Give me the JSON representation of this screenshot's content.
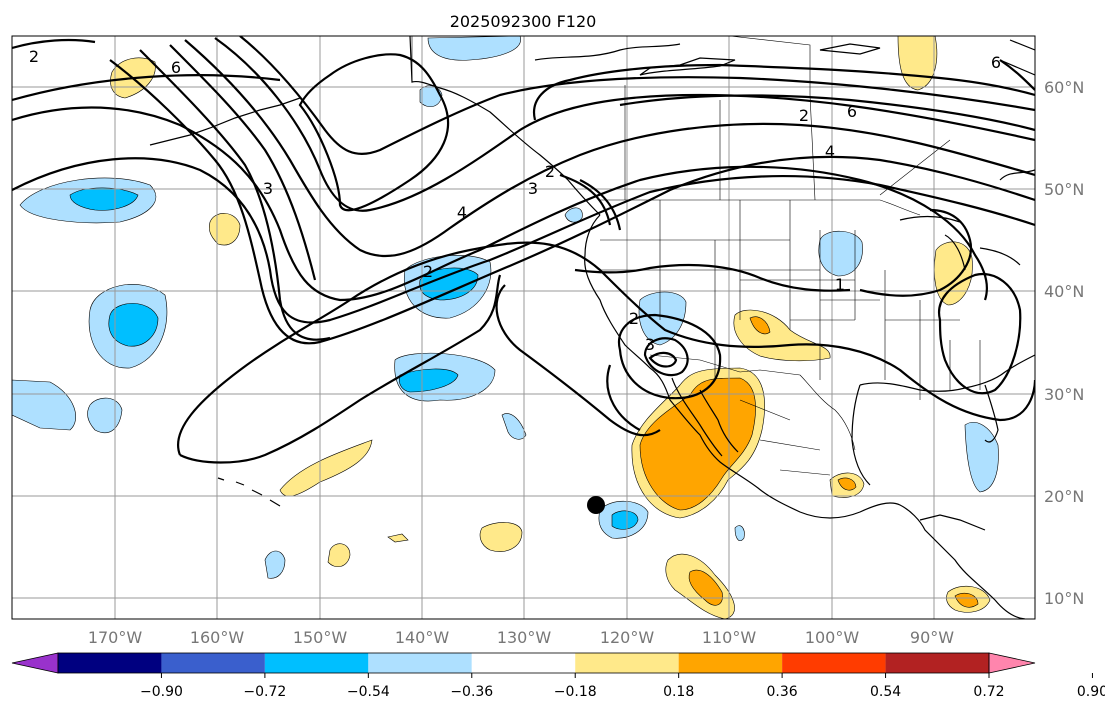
{
  "title": "2025092300 F120",
  "lon_labels": [
    "170°W",
    "160°W",
    "150°W",
    "140°W",
    "130°W",
    "120°W",
    "110°W",
    "100°W",
    "90°W"
  ],
  "lat_labels": [
    "60°N",
    "50°N",
    "40°N",
    "30°N",
    "20°N",
    "10°N"
  ],
  "colorbar": {
    "tick_labels": [
      "−0.90",
      "−0.72",
      "−0.54",
      "−0.36",
      "−0.18",
      "0.18",
      "0.36",
      "0.54",
      "0.72",
      "0.90"
    ],
    "colors": [
      "#9932cc",
      "#000080",
      "#3a5fcd",
      "#00bfff",
      "#aee0ff",
      "#ffffff",
      "#ffe98a",
      "#ffa500",
      "#ff3c00",
      "#b22222",
      "#ff85ad"
    ]
  },
  "contour_labels": [
    "2",
    "6",
    "3",
    "4",
    "2",
    "3",
    "2",
    "2",
    "3",
    "6",
    "4",
    "1",
    "2",
    "6"
  ],
  "shading_colors": {
    "light_blue": "#aee0ff",
    "blue": "#00bfff",
    "light_yellow": "#ffe98a",
    "orange": "#ffa500"
  },
  "marker": "filled-circle"
}
